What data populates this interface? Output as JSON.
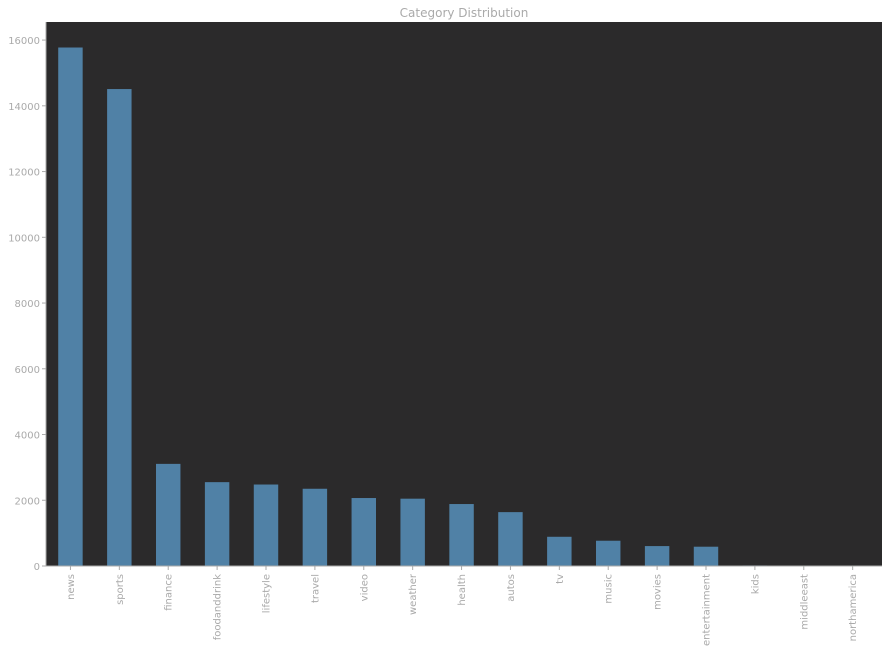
{
  "chart_data": {
    "type": "bar",
    "title": "Category Distribution",
    "xlabel": "",
    "ylabel": "",
    "categories": [
      "news",
      "sports",
      "finance",
      "foodanddrink",
      "lifestyle",
      "travel",
      "video",
      "weather",
      "health",
      "autos",
      "tv",
      "music",
      "movies",
      "entertainment",
      "kids",
      "middleeast",
      "northamerica"
    ],
    "values": [
      15774,
      14510,
      3107,
      2551,
      2479,
      2350,
      2068,
      2048,
      1885,
      1639,
      889,
      769,
      606,
      587,
      17,
      2,
      1
    ],
    "ylim": [
      0,
      16550
    ],
    "yticks": [
      0,
      2000,
      4000,
      6000,
      8000,
      10000,
      12000,
      14000,
      16000
    ],
    "grid": false,
    "legend": "none",
    "colors": {
      "bar": "#5081a6",
      "plot_background": "#2b2a2b",
      "text": "#aaaaaa",
      "axis": "#aaaaaa"
    }
  }
}
